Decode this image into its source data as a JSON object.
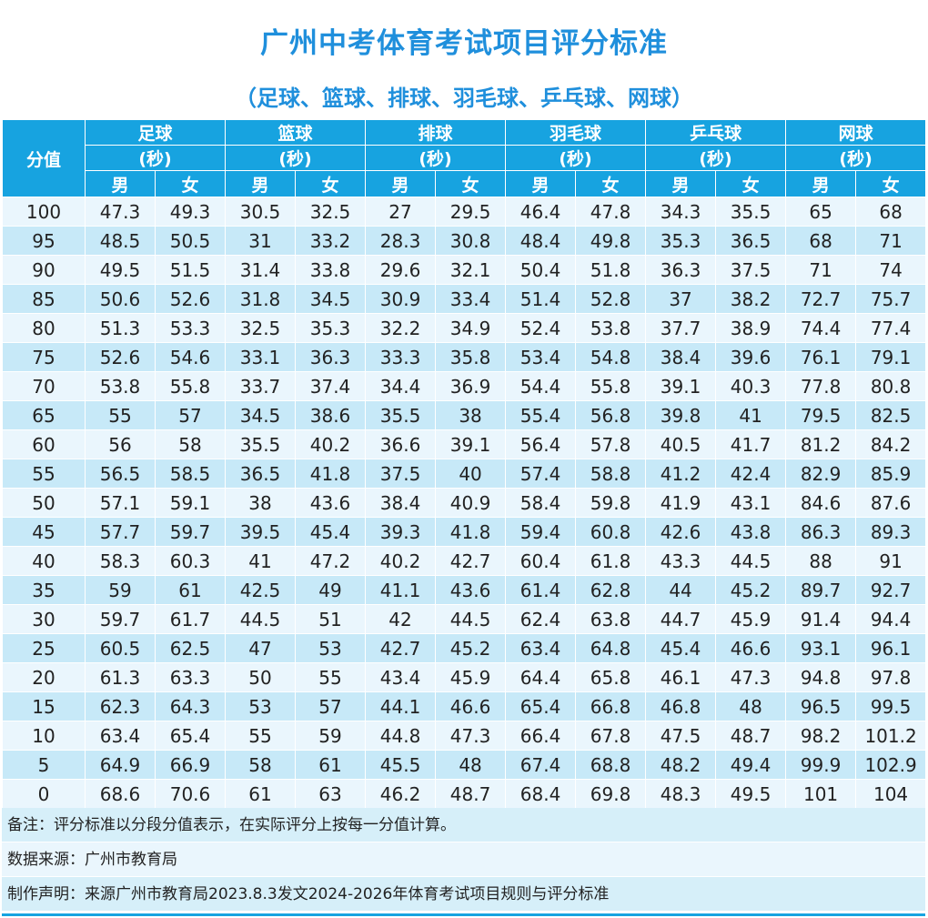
{
  "title": "广州中考体育考试项目评分标准",
  "subtitle": "（足球、篮球、排球、羽毛球、乒乓球、网球）",
  "table": {
    "score_header": "分值",
    "unit": "(秒)",
    "male": "男",
    "female": "女",
    "sports": [
      "足球",
      "篮球",
      "排球",
      "羽毛球",
      "乒乓球",
      "网球"
    ],
    "rows": [
      [
        "100",
        "47.3",
        "49.3",
        "30.5",
        "32.5",
        "27",
        "29.5",
        "46.4",
        "47.8",
        "34.3",
        "35.5",
        "65",
        "68"
      ],
      [
        "95",
        "48.5",
        "50.5",
        "31",
        "33.2",
        "28.3",
        "30.8",
        "48.4",
        "49.8",
        "35.3",
        "36.5",
        "68",
        "71"
      ],
      [
        "90",
        "49.5",
        "51.5",
        "31.4",
        "33.8",
        "29.6",
        "32.1",
        "50.4",
        "51.8",
        "36.3",
        "37.5",
        "71",
        "74"
      ],
      [
        "85",
        "50.6",
        "52.6",
        "31.8",
        "34.5",
        "30.9",
        "33.4",
        "51.4",
        "52.8",
        "37",
        "38.2",
        "72.7",
        "75.7"
      ],
      [
        "80",
        "51.3",
        "53.3",
        "32.5",
        "35.3",
        "32.2",
        "34.9",
        "52.4",
        "53.8",
        "37.7",
        "38.9",
        "74.4",
        "77.4"
      ],
      [
        "75",
        "52.6",
        "54.6",
        "33.1",
        "36.3",
        "33.3",
        "35.8",
        "53.4",
        "54.8",
        "38.4",
        "39.6",
        "76.1",
        "79.1"
      ],
      [
        "70",
        "53.8",
        "55.8",
        "33.7",
        "37.4",
        "34.4",
        "36.9",
        "54.4",
        "55.8",
        "39.1",
        "40.3",
        "77.8",
        "80.8"
      ],
      [
        "65",
        "55",
        "57",
        "34.5",
        "38.6",
        "35.5",
        "38",
        "55.4",
        "56.8",
        "39.8",
        "41",
        "79.5",
        "82.5"
      ],
      [
        "60",
        "56",
        "58",
        "35.5",
        "40.2",
        "36.6",
        "39.1",
        "56.4",
        "57.8",
        "40.5",
        "41.7",
        "81.2",
        "84.2"
      ],
      [
        "55",
        "56.5",
        "58.5",
        "36.5",
        "41.8",
        "37.5",
        "40",
        "57.4",
        "58.8",
        "41.2",
        "42.4",
        "82.9",
        "85.9"
      ],
      [
        "50",
        "57.1",
        "59.1",
        "38",
        "43.6",
        "38.4",
        "40.9",
        "58.4",
        "59.8",
        "41.9",
        "43.1",
        "84.6",
        "87.6"
      ],
      [
        "45",
        "57.7",
        "59.7",
        "39.5",
        "45.4",
        "39.3",
        "41.8",
        "59.4",
        "60.8",
        "42.6",
        "43.8",
        "86.3",
        "89.3"
      ],
      [
        "40",
        "58.3",
        "60.3",
        "41",
        "47.2",
        "40.2",
        "42.7",
        "60.4",
        "61.8",
        "43.3",
        "44.5",
        "88",
        "91"
      ],
      [
        "35",
        "59",
        "61",
        "42.5",
        "49",
        "41.1",
        "43.6",
        "61.4",
        "62.8",
        "44",
        "45.2",
        "89.7",
        "92.7"
      ],
      [
        "30",
        "59.7",
        "61.7",
        "44.5",
        "51",
        "42",
        "44.5",
        "62.4",
        "63.8",
        "44.7",
        "45.9",
        "91.4",
        "94.4"
      ],
      [
        "25",
        "60.5",
        "62.5",
        "47",
        "53",
        "42.7",
        "45.2",
        "63.4",
        "64.8",
        "45.4",
        "46.6",
        "93.1",
        "96.1"
      ],
      [
        "20",
        "61.3",
        "63.3",
        "50",
        "55",
        "43.4",
        "45.9",
        "64.4",
        "65.8",
        "46.1",
        "47.3",
        "94.8",
        "97.8"
      ],
      [
        "15",
        "62.3",
        "64.3",
        "53",
        "57",
        "44.1",
        "46.6",
        "65.4",
        "66.8",
        "46.8",
        "48",
        "96.5",
        "99.5"
      ],
      [
        "10",
        "63.4",
        "65.4",
        "55",
        "59",
        "44.8",
        "47.3",
        "66.4",
        "67.8",
        "47.5",
        "48.7",
        "98.2",
        "101.2"
      ],
      [
        "5",
        "64.9",
        "66.9",
        "58",
        "61",
        "45.5",
        "48",
        "67.4",
        "68.8",
        "48.2",
        "49.4",
        "99.9",
        "102.9"
      ],
      [
        "0",
        "68.6",
        "70.6",
        "61",
        "63",
        "46.2",
        "48.7",
        "68.4",
        "69.8",
        "48.3",
        "49.5",
        "101",
        "104"
      ]
    ]
  },
  "notes": {
    "remark": "备注：评分标准以分段分值表示，在实际评分上按每一分值计算。",
    "source": "数据来源：广州市教育局",
    "statement": "制作声明：来源广州市教育局2023.8.3发文2024-2026年体育考试项目规则与评分标准"
  },
  "colors": {
    "title": "#1f8fdc",
    "header_bg": "#17a3e0",
    "row_light": "#eaf6fd",
    "row_dark": "#c7e9f8"
  }
}
